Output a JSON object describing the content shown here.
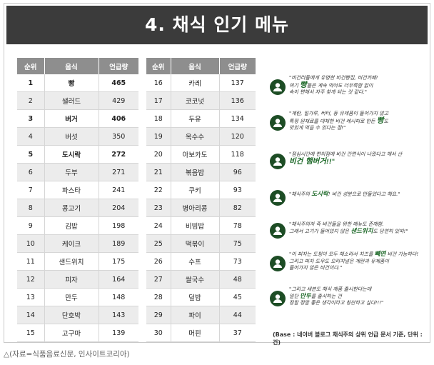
{
  "title": "4. 채식 인기 메뉴",
  "table_headers": {
    "rank": "순위",
    "food": "음식",
    "count": "언급량"
  },
  "left_rows": [
    {
      "rank": "1",
      "food": "빵",
      "count": "465"
    },
    {
      "rank": "2",
      "food": "샐러드",
      "count": "429"
    },
    {
      "rank": "3",
      "food": "버거",
      "count": "406"
    },
    {
      "rank": "4",
      "food": "버섯",
      "count": "350"
    },
    {
      "rank": "5",
      "food": "도시락",
      "count": "272"
    },
    {
      "rank": "6",
      "food": "두부",
      "count": "271"
    },
    {
      "rank": "7",
      "food": "파스타",
      "count": "241"
    },
    {
      "rank": "8",
      "food": "콩고기",
      "count": "204"
    },
    {
      "rank": "9",
      "food": "김밥",
      "count": "198"
    },
    {
      "rank": "10",
      "food": "케이크",
      "count": "189"
    },
    {
      "rank": "11",
      "food": "샌드위치",
      "count": "175"
    },
    {
      "rank": "12",
      "food": "피자",
      "count": "164"
    },
    {
      "rank": "13",
      "food": "만두",
      "count": "148"
    },
    {
      "rank": "14",
      "food": "단호박",
      "count": "143"
    },
    {
      "rank": "15",
      "food": "고구마",
      "count": "139"
    }
  ],
  "right_rows": [
    {
      "rank": "16",
      "food": "카레",
      "count": "137"
    },
    {
      "rank": "17",
      "food": "코코넛",
      "count": "136"
    },
    {
      "rank": "18",
      "food": "두유",
      "count": "134"
    },
    {
      "rank": "19",
      "food": "옥수수",
      "count": "120"
    },
    {
      "rank": "20",
      "food": "아보카도",
      "count": "118"
    },
    {
      "rank": "21",
      "food": "볶음밥",
      "count": "96"
    },
    {
      "rank": "22",
      "food": "쿠키",
      "count": "93"
    },
    {
      "rank": "23",
      "food": "병아리콩",
      "count": "82"
    },
    {
      "rank": "24",
      "food": "비빔밥",
      "count": "78"
    },
    {
      "rank": "25",
      "food": "떡볶이",
      "count": "75"
    },
    {
      "rank": "26",
      "food": "수프",
      "count": "73"
    },
    {
      "rank": "27",
      "food": "쌀국수",
      "count": "48"
    },
    {
      "rank": "28",
      "food": "덮밥",
      "count": "45"
    },
    {
      "rank": "29",
      "food": "파이",
      "count": "44"
    },
    {
      "rank": "30",
      "food": "머핀",
      "count": "37"
    }
  ],
  "quotes": [
    {
      "a": "\"비건러들에게 유명한 비건빵집, 비건카페!",
      "b": "여기 ",
      "hl": "빵",
      "c": "들은 계속 먹어도 더부룩함 없이",
      "d": "속이 편해서 자주 찾게 되는 것 같다.\""
    },
    {
      "a": "\"계란, 밀가루, 버터, 등 유제품이 들어가지 않고",
      "b": "특정 원재료를 대체한 비건 레시피로 만든 ",
      "hl": "빵",
      "c": "도",
      "d": "맛있게 먹을 수 있다는 점!\""
    },
    {
      "a": "\"점심시간에 편의점에 비건 간편식이 나왔다고 해서 산",
      "b": "",
      "hl": "비건 햄버거",
      "c": "!!\"",
      "d": ""
    },
    {
      "a": "\"채식주의 ",
      "hl": "도시락",
      "c": "! 비건 성분으로 만들었다고 해요.\""
    },
    {
      "a": "\"채식주의자 즉 비건들을 위한 메뉴도 존재함.",
      "b": "그래서 고기가 들어있지 않은 ",
      "hl": "샌드위치",
      "c": "도 당연히 있따!\""
    },
    {
      "a": "\"이 피자는 도핑이 모두 채소라서 치즈를 ",
      "hl": "빼면",
      "b": " 비건 가능하다!",
      "c": "그리고 피자 도우도 오리지널은 계란과 유제품이",
      "d": "들어가지 않은 비건이다.\""
    },
    {
      "a": "\"그리고 세븐도 채식 제품 출시한다는데",
      "b": "일단 ",
      "hl": "만두",
      "c": "를 출시하는 건",
      "d": "정말 정말 좋은 생각이라고 칭찬하고 싶다!!!\""
    }
  ],
  "base_note": "(Base : 네이버 블로그 채식주의 상위 언급 문서 기준, 단위 : 건)",
  "caption": "△(자료=식품음료신문, 인사이트코리아)",
  "colors": {
    "title_bg": "#3b3b3b",
    "header_bg": "#8e8e8e",
    "row_alt": "#ececec",
    "accent": "#1d4d25"
  }
}
